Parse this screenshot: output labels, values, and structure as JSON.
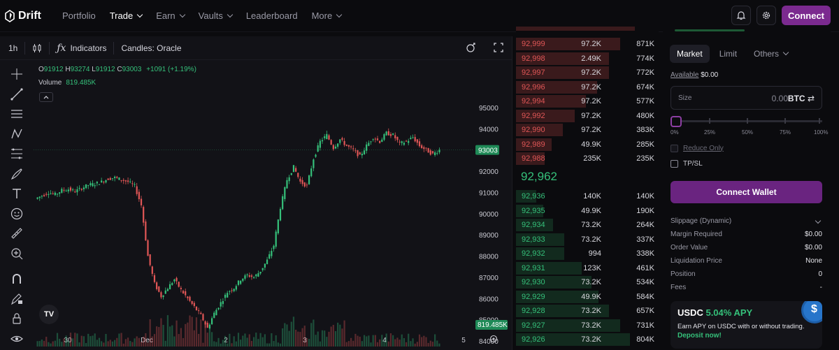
{
  "nav": {
    "brand": "Drift",
    "items": [
      {
        "label": "Portfolio",
        "active": false,
        "dropdown": false
      },
      {
        "label": "Trade",
        "active": true,
        "dropdown": true
      },
      {
        "label": "Earn",
        "active": false,
        "dropdown": true
      },
      {
        "label": "Vaults",
        "active": false,
        "dropdown": true
      },
      {
        "label": "Leaderboard",
        "active": false,
        "dropdown": false
      },
      {
        "label": "More",
        "active": false,
        "dropdown": true
      }
    ],
    "connect_label": "Connect",
    "icons": [
      "bell-icon",
      "gear-icon"
    ]
  },
  "chart": {
    "interval": "1h",
    "indicators_label": "Indicators",
    "candles_label": "Candles: Oracle",
    "ohlc": {
      "o": "91912",
      "h": "93274",
      "l": "91912",
      "c": "93003",
      "change": "+1091 (+1.19%)"
    },
    "volume_label": "Volume",
    "volume_value": "819.485K",
    "last_price_tag": "93003",
    "volume_tag": "819.485K",
    "y_ticks": [
      "95000",
      "94000",
      "93000",
      "92000",
      "91000",
      "90000",
      "89000",
      "88000",
      "87000",
      "86000",
      "85000",
      "84000"
    ],
    "x_ticks": [
      "30",
      "Dec",
      "2",
      "3",
      "4",
      "5"
    ],
    "colors": {
      "up": "#35c07a",
      "down": "#e05656",
      "bg": "#121217"
    },
    "tools": [
      "crosshair-icon",
      "trend-line-icon",
      "horizontal-lines-icon",
      "pattern-icon",
      "fib-icon",
      "brush-icon",
      "text-icon",
      "emoji-icon",
      "ruler-icon",
      "zoom-in-icon",
      "magnet-icon",
      "pencil-lock-icon",
      "lock-icon",
      "eye-icon"
    ]
  },
  "chart_data": {
    "type": "candlestick",
    "ylim": [
      83500,
      95500
    ],
    "x_ticks": [
      "30",
      "Dec",
      "2",
      "3",
      "4",
      "5"
    ],
    "close_path": [
      90700,
      90850,
      91000,
      90900,
      91100,
      91150,
      91050,
      91200,
      91350,
      91400,
      91500,
      91650,
      91700,
      91600,
      91500,
      91300,
      90400,
      88000,
      86700,
      86100,
      86500,
      86900,
      86400,
      86000,
      85600,
      85200,
      84600,
      85300,
      85800,
      86300,
      86500,
      86900,
      87100,
      87000,
      87300,
      87800,
      88500,
      90300,
      91600,
      92200,
      91500,
      91300,
      92600,
      93400,
      93700,
      93100,
      93500,
      93200,
      93000,
      92700,
      93200,
      93600,
      93400,
      93800,
      93700,
      93300,
      93400,
      93600,
      93200,
      93000,
      92800,
      93003
    ],
    "volume_scale": "relative"
  },
  "orderbook": {
    "asks": [
      {
        "price": "92,999",
        "size": "97.2K",
        "total": "871K",
        "depth": 0.73
      },
      {
        "price": "92,998",
        "size": "2.49K",
        "total": "774K",
        "depth": 0.65
      },
      {
        "price": "92,997",
        "size": "97.2K",
        "total": "772K",
        "depth": 0.65
      },
      {
        "price": "92,996",
        "size": "97.2K",
        "total": "674K",
        "depth": 0.57
      },
      {
        "price": "92,994",
        "size": "97.2K",
        "total": "577K",
        "depth": 0.49
      },
      {
        "price": "92,992",
        "size": "97.2K",
        "total": "480K",
        "depth": 0.41
      },
      {
        "price": "92,990",
        "size": "97.2K",
        "total": "383K",
        "depth": 0.33
      },
      {
        "price": "92,989",
        "size": "49.9K",
        "total": "285K",
        "depth": 0.25
      },
      {
        "price": "92,988",
        "size": "235K",
        "total": "235K",
        "depth": 0.2
      }
    ],
    "mid_price": "92,962",
    "bids": [
      {
        "price": "92,936",
        "size": "140K",
        "total": "140K",
        "depth": 0.14
      },
      {
        "price": "92,935",
        "size": "49.9K",
        "total": "190K",
        "depth": 0.19
      },
      {
        "price": "92,934",
        "size": "73.2K",
        "total": "264K",
        "depth": 0.26
      },
      {
        "price": "92,933",
        "size": "73.2K",
        "total": "337K",
        "depth": 0.34
      },
      {
        "price": "92,932",
        "size": "994",
        "total": "338K",
        "depth": 0.34
      },
      {
        "price": "92,931",
        "size": "123K",
        "total": "461K",
        "depth": 0.46
      },
      {
        "price": "92,930",
        "size": "73.2K",
        "total": "534K",
        "depth": 0.53
      },
      {
        "price": "92,929",
        "size": "49.9K",
        "total": "584K",
        "depth": 0.58
      },
      {
        "price": "92,928",
        "size": "73.2K",
        "total": "657K",
        "depth": 0.65
      },
      {
        "price": "92,927",
        "size": "73.2K",
        "total": "731K",
        "depth": 0.73
      },
      {
        "price": "92,926",
        "size": "73.2K",
        "total": "804K",
        "depth": 0.8
      }
    ]
  },
  "trade": {
    "tabs": [
      "Market",
      "Limit",
      "Others"
    ],
    "available_label": "Available",
    "available_value": "$0.00",
    "size_label": "Size",
    "size_value": "0.00",
    "size_currency": "BTC",
    "slider_marks": [
      "0%",
      "25%",
      "50%",
      "75%",
      "100%"
    ],
    "slider_value_percent": 0,
    "reduce_only": "Reduce Only",
    "tpsl": "TP/SL",
    "connect_wallet": "Connect Wallet",
    "slippage": "Slippage (Dynamic)",
    "info": [
      {
        "label": "Margin Required",
        "value": "$0.00"
      },
      {
        "label": "Order Value",
        "value": "$0.00"
      },
      {
        "label": "Liquidation Price",
        "value": "None"
      },
      {
        "label": "Position",
        "value": "0"
      },
      {
        "label": "Fees",
        "value": "-"
      }
    ],
    "promo": {
      "title": "USDC",
      "apy": "5.04% APY",
      "desc": "Earn APY on USDC with or without trading.",
      "link": "Deposit now!"
    }
  }
}
